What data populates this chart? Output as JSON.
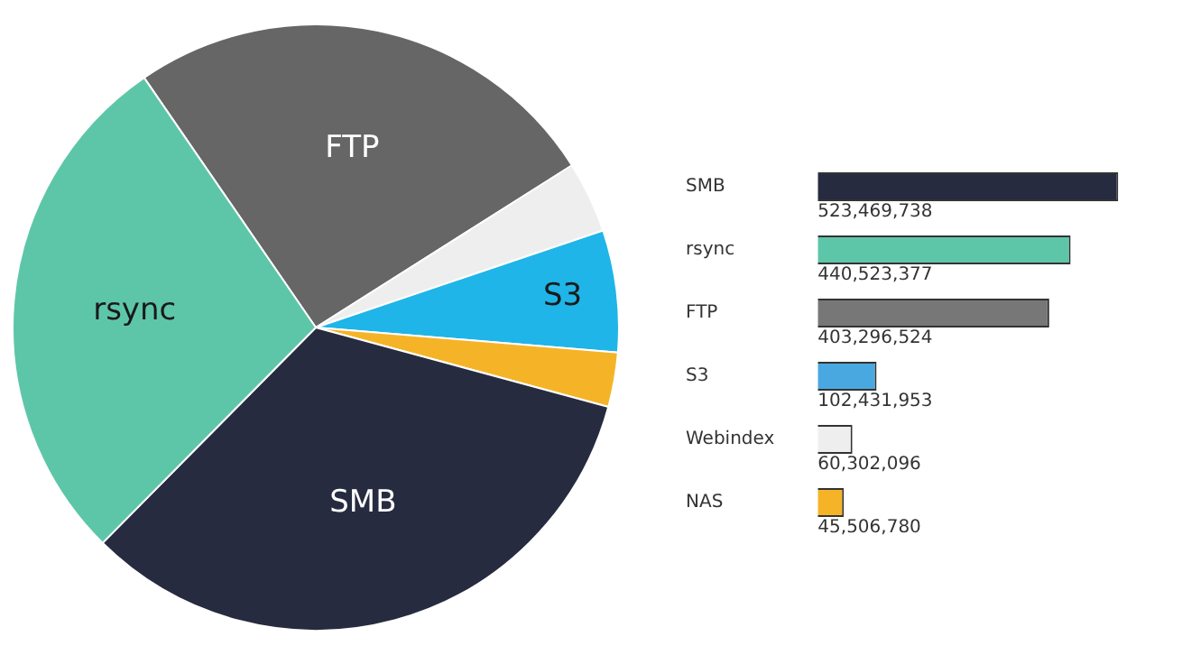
{
  "chart_data": [
    {
      "type": "pie",
      "categories": [
        "FTP",
        null,
        "S3",
        null,
        "SMB",
        "rsync"
      ],
      "values": [
        25.6,
        3.8,
        6.5,
        2.9,
        33.2,
        28.0
      ],
      "colors": [
        "#666666",
        "#eeeeee",
        "#1fb5e8",
        "#f5b427",
        "#272b40",
        "#5ec6a8"
      ]
    },
    {
      "type": "bar",
      "orientation": "horizontal",
      "categories": [
        "SMB",
        "rsync",
        "FTP",
        "S3",
        "Webindex",
        "NAS"
      ],
      "values": [
        523469738,
        440523377,
        403296524,
        102431953,
        60302096,
        45506780
      ],
      "colors": [
        "#272b40",
        "#5ec6a8",
        "#777777",
        "#4aa8e0",
        "#eeeeee",
        "#f5b427"
      ],
      "value_labels": [
        "523,469,738",
        "440,523,377",
        "403,296,524",
        "102,431,953",
        "60,302,096",
        "45,506,780"
      ],
      "tick_labels": "y"
    }
  ]
}
